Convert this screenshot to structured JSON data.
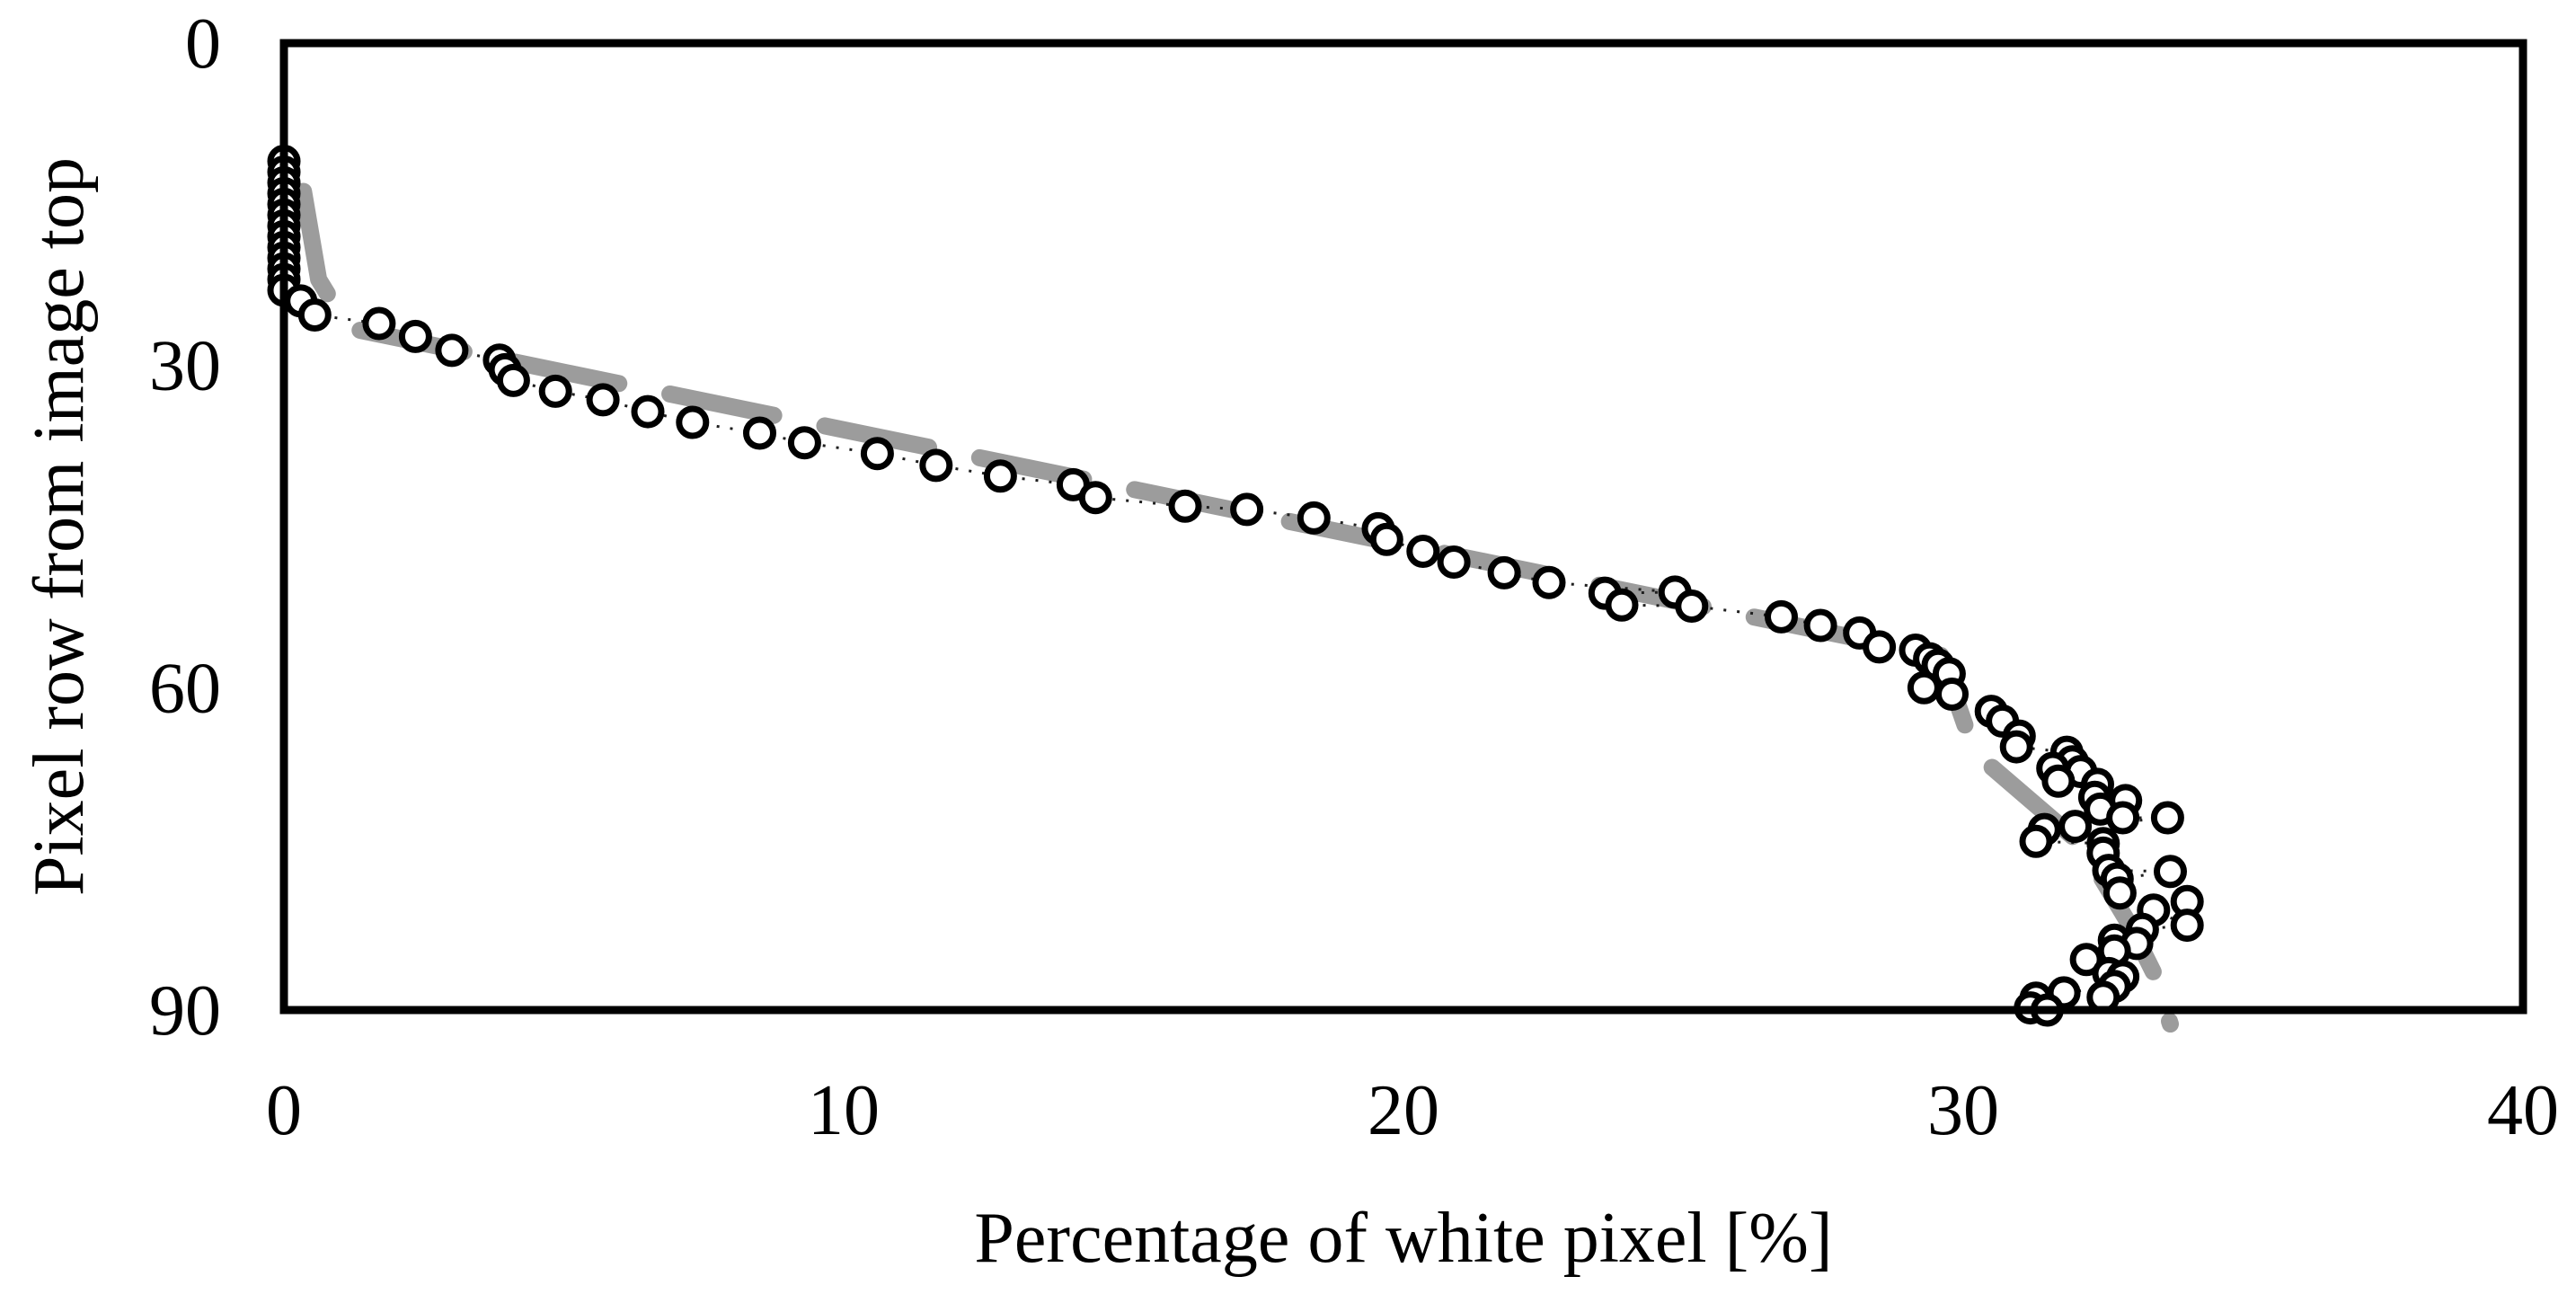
{
  "figure": {
    "background": "#ffffff",
    "border_color": "#000000"
  },
  "chart_data": {
    "type": "scatter",
    "title": "",
    "xlabel": "Percentage of white pixel [%]",
    "ylabel": "Pixel row from image top",
    "xlim": [
      0,
      40
    ],
    "ylim": [
      0,
      90
    ],
    "y_inverted": true,
    "x_ticks": [
      0,
      10,
      20,
      30,
      40
    ],
    "y_ticks": [
      0,
      30,
      60,
      90
    ],
    "grid": false,
    "legend_position": "none",
    "colors": {
      "frame": "#000000",
      "marker_stroke": "#000000",
      "marker_fill": "#ffffff",
      "trend_line": "#9c9c9c",
      "connector_dots": "#1f1f1f",
      "text": "#000000"
    },
    "series": [
      {
        "name": "white-pixel-percentage-per-row",
        "type": "scatter",
        "marker": "open-circle",
        "points_xy": [
          [
            0,
            11
          ],
          [
            0,
            12
          ],
          [
            0,
            13
          ],
          [
            0,
            14
          ],
          [
            0,
            15
          ],
          [
            0,
            16
          ],
          [
            0,
            17
          ],
          [
            0,
            18
          ],
          [
            0,
            19
          ],
          [
            0,
            20
          ],
          [
            0,
            21
          ],
          [
            0,
            22
          ],
          [
            0,
            23
          ],
          [
            0.3,
            24
          ],
          [
            0.55,
            25.3
          ],
          [
            1.7,
            26.1
          ],
          [
            2.35,
            27.3
          ],
          [
            3.0,
            28.6
          ],
          [
            3.85,
            29.5
          ],
          [
            3.95,
            30.4
          ],
          [
            4.1,
            31.4
          ],
          [
            4.85,
            32.4
          ],
          [
            5.7,
            33.2
          ],
          [
            6.5,
            34.3
          ],
          [
            7.3,
            35.3
          ],
          [
            8.5,
            36.3
          ],
          [
            9.3,
            37.2
          ],
          [
            10.6,
            38.2
          ],
          [
            11.65,
            39.3
          ],
          [
            12.8,
            40.3
          ],
          [
            14.1,
            41.1
          ],
          [
            14.5,
            42.3
          ],
          [
            16.1,
            43.1
          ],
          [
            17.2,
            43.4
          ],
          [
            18.4,
            44.2
          ],
          [
            19.55,
            45.2
          ],
          [
            19.7,
            46.2
          ],
          [
            20.35,
            47.3
          ],
          [
            20.9,
            48.3
          ],
          [
            21.8,
            49.3
          ],
          [
            22.6,
            50.2
          ],
          [
            23.6,
            51.2
          ],
          [
            23.9,
            52.3
          ],
          [
            24.85,
            51.1
          ],
          [
            25.15,
            52.4
          ],
          [
            26.75,
            53.4
          ],
          [
            27.45,
            54.2
          ],
          [
            28.15,
            54.9
          ],
          [
            28.5,
            56.2
          ],
          [
            29.15,
            56.5
          ],
          [
            29.4,
            57.3
          ],
          [
            29.55,
            57.9
          ],
          [
            29.75,
            58.7
          ],
          [
            29.3,
            60.0
          ],
          [
            29.8,
            60.6
          ],
          [
            30.5,
            62.2
          ],
          [
            30.7,
            63.1
          ],
          [
            31.0,
            64.5
          ],
          [
            30.95,
            65.5
          ],
          [
            31.85,
            66.0
          ],
          [
            31.95,
            66.9
          ],
          [
            32.1,
            67.8
          ],
          [
            31.6,
            67.5
          ],
          [
            31.7,
            68.7
          ],
          [
            32.4,
            69.0
          ],
          [
            32.35,
            70.2
          ],
          [
            32.9,
            70.5
          ],
          [
            32.45,
            71.3
          ],
          [
            32.85,
            72.1
          ],
          [
            33.65,
            72.1
          ],
          [
            32.0,
            72.9
          ],
          [
            31.45,
            73.2
          ],
          [
            31.3,
            74.3
          ],
          [
            32.5,
            74.5
          ],
          [
            32.5,
            75.4
          ],
          [
            32.6,
            77.0
          ],
          [
            33.7,
            77.1
          ],
          [
            32.75,
            77.8
          ],
          [
            32.8,
            79.1
          ],
          [
            34.0,
            79.9
          ],
          [
            33.4,
            80.7
          ],
          [
            34.0,
            82.1
          ],
          [
            33.2,
            82.5
          ],
          [
            32.7,
            83.5
          ],
          [
            33.1,
            83.8
          ],
          [
            32.7,
            84.5
          ],
          [
            32.2,
            85.3
          ],
          [
            32.6,
            86.6
          ],
          [
            32.85,
            86.9
          ],
          [
            32.7,
            87.8
          ],
          [
            31.8,
            88.4
          ],
          [
            32.5,
            88.8
          ],
          [
            31.3,
            88.9
          ],
          [
            31.2,
            89.8
          ],
          [
            31.5,
            90.0
          ]
        ]
      },
      {
        "name": "dotted-connector-line",
        "type": "line",
        "style": "dotted",
        "follows": "white-pixel-percentage-per-row"
      },
      {
        "name": "trend-dashed-line",
        "type": "line",
        "style": "dashed",
        "points_xy": [
          [
            0.35,
            13.8
          ],
          [
            0.62,
            22.0
          ],
          [
            1.15,
            26.5
          ],
          [
            29.6,
            57.0
          ],
          [
            30.2,
            66.0
          ],
          [
            32.1,
            74.5
          ],
          [
            33.0,
            82.3
          ],
          [
            33.4,
            86.5
          ],
          [
            33.7,
            91.3
          ]
        ]
      }
    ]
  }
}
